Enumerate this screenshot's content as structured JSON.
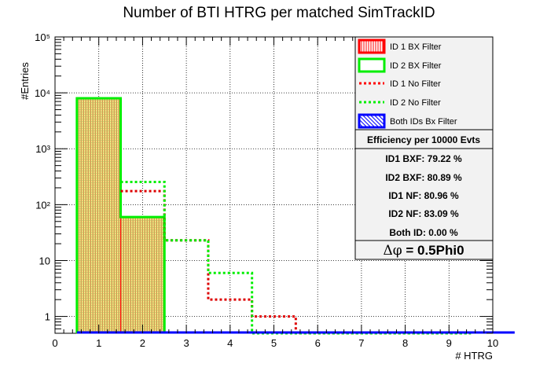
{
  "chart_data": {
    "type": "bar",
    "title": "Number of BTI HTRG per matched SimTrackID",
    "xlabel": "# HTRG",
    "ylabel": "#Entries",
    "xlim": [
      0,
      10
    ],
    "ylim": [
      0.5,
      100000
    ],
    "y_scale": "log",
    "grid": true,
    "x_ticks": [
      "0",
      "1",
      "2",
      "3",
      "4",
      "5",
      "6",
      "7",
      "8",
      "9",
      "10"
    ],
    "y_ticks": [
      {
        "value": 1,
        "label": "1"
      },
      {
        "value": 10,
        "label": "10"
      },
      {
        "value": 100,
        "label": "10²"
      },
      {
        "value": 1000,
        "label": "10³"
      },
      {
        "value": 10000,
        "label": "10⁴"
      },
      {
        "value": 100000,
        "label": "10⁵"
      }
    ],
    "bin_edges": [
      0.5,
      1.5,
      2.5,
      3.5,
      4.5,
      5.5,
      6.5,
      7.5,
      8.5,
      9.5
    ],
    "series": [
      {
        "name": "ID 1 BX Filter",
        "color": "#ff0000",
        "style": "filled-hatch",
        "values": [
          7900,
          60,
          0,
          0,
          0,
          0,
          0,
          0,
          0
        ]
      },
      {
        "name": "ID 2 BX Filter",
        "color": "#00ee00",
        "style": "outline-thick",
        "values": [
          8000,
          60,
          0,
          0,
          0,
          0,
          0,
          0,
          0
        ]
      },
      {
        "name": "ID 1 No Filter",
        "color": "#ff0000",
        "style": "dotted",
        "values": [
          8000,
          175,
          23,
          2,
          1,
          0,
          0,
          0,
          0
        ]
      },
      {
        "name": "ID 2 No Filter",
        "color": "#00ee00",
        "style": "dotted",
        "values": [
          8000,
          255,
          23,
          6,
          0,
          0,
          0,
          0,
          0
        ]
      },
      {
        "name": "Both IDs Bx Filter",
        "color": "#0000ff",
        "style": "hatch-blue",
        "values": [
          0,
          0,
          0,
          0,
          0,
          0,
          0,
          0,
          0
        ]
      }
    ],
    "legend_position": "top-right",
    "stats_box": {
      "header": "Efficiency per 10000 Evts",
      "lines": [
        "ID1 BXF: 79.22 %",
        "ID2 BXF: 80.89 %",
        "ID1 NF: 80.96 %",
        "ID2 NF: 83.09 %",
        "Both ID: 0.00 %"
      ],
      "footer_symbol": "Δφ",
      "footer_text": " = 0.5Phi0"
    }
  }
}
